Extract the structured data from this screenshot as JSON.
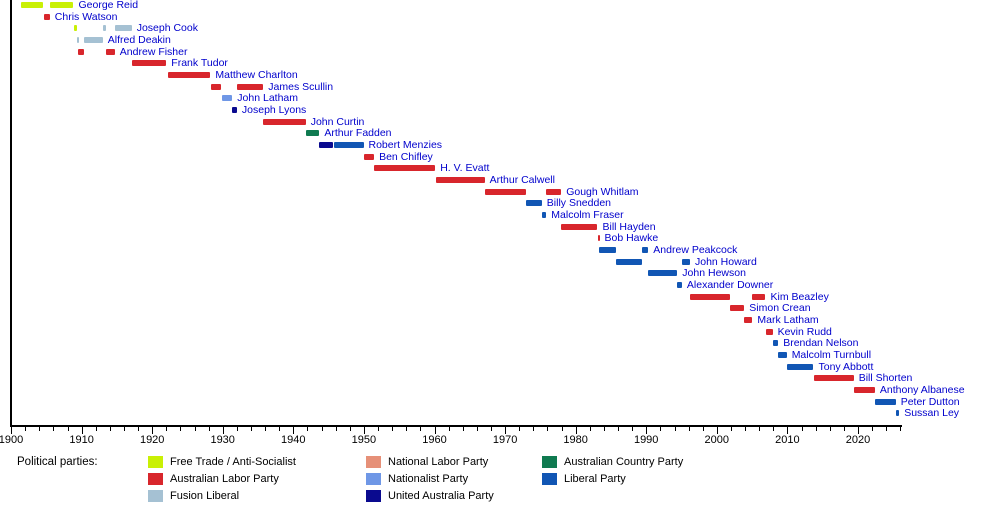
{
  "chart_data": {
    "type": "timeline-gantt",
    "x_axis": {
      "start": 1900,
      "end": 2026.3,
      "tick_label_years": [
        1900,
        1910,
        1920,
        1930,
        1940,
        1950,
        1960,
        1970,
        1980,
        1990,
        2000,
        2010,
        2020
      ],
      "minor_tick_step": 2,
      "grid": false
    },
    "parties": {
      "ft": {
        "label": "Free Trade / Anti-Socialist",
        "color": "#c9f005"
      },
      "alp": {
        "label": "Australian Labor Party",
        "color": "#d8262c"
      },
      "fus": {
        "label": "Fusion Liberal",
        "color": "#a5c1d3"
      },
      "nlp": {
        "label": "National Labor Party",
        "color": "#e69078"
      },
      "nat": {
        "label": "Nationalist Party",
        "color": "#6f97e6"
      },
      "uap": {
        "label": "United Australia Party",
        "color": "#0a0a8f"
      },
      "cp": {
        "label": "Australian Country Party",
        "color": "#0f7a50"
      },
      "lib": {
        "label": "Liberal Party",
        "color": "#1156b4"
      }
    },
    "label_color": "#0000cc",
    "people": [
      {
        "name": "George Reid",
        "segments": [
          {
            "start": 1901.35,
            "end": 1904.6,
            "party": "ft"
          },
          {
            "start": 1905.5,
            "end": 1908.85,
            "party": "ft"
          }
        ]
      },
      {
        "name": "Chris Watson",
        "segments": [
          {
            "start": 1904.6,
            "end": 1905.5,
            "party": "alp"
          }
        ]
      },
      {
        "name": "Joseph Cook",
        "segments": [
          {
            "start": 1908.85,
            "end": 1909.4,
            "party": "ft"
          },
          {
            "start": 1913.0,
            "end": 1913.45,
            "party": "fus"
          },
          {
            "start": 1914.7,
            "end": 1917.1,
            "party": "fus"
          }
        ]
      },
      {
        "name": "Alfred Deakin",
        "segments": [
          {
            "start": 1909.4,
            "end": 1909.6,
            "party": "fus"
          },
          {
            "start": 1910.3,
            "end": 1913.0,
            "party": "fus"
          }
        ]
      },
      {
        "name": "Andrew Fisher",
        "segments": [
          {
            "start": 1909.45,
            "end": 1910.3,
            "party": "alp"
          },
          {
            "start": 1913.45,
            "end": 1914.7,
            "party": "alp"
          }
        ]
      },
      {
        "name": "Frank Tudor",
        "segments": [
          {
            "start": 1917.1,
            "end": 1922.0,
            "party": "alp"
          }
        ]
      },
      {
        "name": "Matthew Charlton",
        "segments": [
          {
            "start": 1922.2,
            "end": 1928.25,
            "party": "alp"
          }
        ]
      },
      {
        "name": "James Scullin",
        "segments": [
          {
            "start": 1928.3,
            "end": 1929.8,
            "party": "alp"
          },
          {
            "start": 1932.05,
            "end": 1935.75,
            "party": "alp"
          }
        ]
      },
      {
        "name": "John Latham",
        "segments": [
          {
            "start": 1929.85,
            "end": 1931.35,
            "party": "nat"
          }
        ]
      },
      {
        "name": "Joseph Lyons",
        "segments": [
          {
            "start": 1931.35,
            "end": 1932.0,
            "party": "uap"
          }
        ]
      },
      {
        "name": "John Curtin",
        "segments": [
          {
            "start": 1935.75,
            "end": 1941.75,
            "party": "alp"
          }
        ]
      },
      {
        "name": "Arthur Fadden",
        "segments": [
          {
            "start": 1941.75,
            "end": 1943.7,
            "party": "cp"
          }
        ]
      },
      {
        "name": "Robert Menzies",
        "segments": [
          {
            "start": 1943.7,
            "end": 1945.7,
            "party": "uap"
          },
          {
            "start": 1945.7,
            "end": 1949.95,
            "party": "lib"
          }
        ]
      },
      {
        "name": "Ben Chifley",
        "segments": [
          {
            "start": 1949.95,
            "end": 1951.45,
            "party": "alp"
          }
        ]
      },
      {
        "name": "H. V. Evatt",
        "segments": [
          {
            "start": 1951.45,
            "end": 1960.1,
            "party": "alp"
          }
        ]
      },
      {
        "name": "Arthur Calwell",
        "segments": [
          {
            "start": 1960.2,
            "end": 1967.1,
            "party": "alp"
          }
        ]
      },
      {
        "name": "Gough Whitlam",
        "segments": [
          {
            "start": 1967.1,
            "end": 1972.95,
            "party": "alp"
          },
          {
            "start": 1975.85,
            "end": 1977.95,
            "party": "alp"
          }
        ]
      },
      {
        "name": "Billy Snedden",
        "segments": [
          {
            "start": 1972.95,
            "end": 1975.2,
            "party": "lib"
          }
        ]
      },
      {
        "name": "Malcolm Fraser",
        "segments": [
          {
            "start": 1975.2,
            "end": 1975.85,
            "party": "lib"
          }
        ]
      },
      {
        "name": "Bill Hayden",
        "segments": [
          {
            "start": 1977.95,
            "end": 1983.1,
            "party": "alp"
          }
        ]
      },
      {
        "name": "Bob Hawke",
        "segments": [
          {
            "start": 1983.1,
            "end": 1983.25,
            "party": "alp"
          }
        ]
      },
      {
        "name": "Andrew Peakcock",
        "segments": [
          {
            "start": 1983.25,
            "end": 1985.7,
            "party": "lib"
          },
          {
            "start": 1989.35,
            "end": 1990.3,
            "party": "lib"
          }
        ]
      },
      {
        "name": "John Howard",
        "segments": [
          {
            "start": 1985.7,
            "end": 1989.35,
            "party": "lib"
          },
          {
            "start": 1995.05,
            "end": 1996.2,
            "party": "lib"
          }
        ]
      },
      {
        "name": "John Hewson",
        "segments": [
          {
            "start": 1990.3,
            "end": 1994.4,
            "party": "lib"
          }
        ]
      },
      {
        "name": "Alexander Downer",
        "segments": [
          {
            "start": 1994.4,
            "end": 1995.05,
            "party": "lib"
          }
        ]
      },
      {
        "name": "Kim Beazley",
        "segments": [
          {
            "start": 1996.2,
            "end": 2001.9,
            "party": "alp"
          },
          {
            "start": 2005.05,
            "end": 2006.9,
            "party": "alp"
          }
        ]
      },
      {
        "name": "Simon Crean",
        "segments": [
          {
            "start": 2001.9,
            "end": 2003.9,
            "party": "alp"
          }
        ]
      },
      {
        "name": "Mark Latham",
        "segments": [
          {
            "start": 2003.9,
            "end": 2005.05,
            "party": "alp"
          }
        ]
      },
      {
        "name": "Kevin Rudd",
        "segments": [
          {
            "start": 2006.9,
            "end": 2007.9,
            "party": "alp"
          }
        ]
      },
      {
        "name": "Brendan Nelson",
        "segments": [
          {
            "start": 2007.9,
            "end": 2008.7,
            "party": "lib"
          }
        ]
      },
      {
        "name": "Malcolm Turnbull",
        "segments": [
          {
            "start": 2008.7,
            "end": 2009.9,
            "party": "lib"
          }
        ]
      },
      {
        "name": "Tony Abbott",
        "segments": [
          {
            "start": 2009.9,
            "end": 2013.7,
            "party": "lib"
          }
        ]
      },
      {
        "name": "Bill Shorten",
        "segments": [
          {
            "start": 2013.75,
            "end": 2019.4,
            "party": "alp"
          }
        ]
      },
      {
        "name": "Anthony Albanese",
        "segments": [
          {
            "start": 2019.4,
            "end": 2022.4,
            "party": "alp"
          }
        ]
      },
      {
        "name": "Peter Dutton",
        "segments": [
          {
            "start": 2022.4,
            "end": 2025.35,
            "party": "lib"
          }
        ]
      },
      {
        "name": "Sussan Ley",
        "segments": [
          {
            "start": 2025.35,
            "end": 2025.85,
            "party": "lib"
          }
        ]
      }
    ]
  },
  "legend": {
    "title": "Political parties:",
    "columns": [
      [
        "ft",
        "alp",
        "fus"
      ],
      [
        "nlp",
        "nat",
        "uap"
      ],
      [
        "cp",
        "lib"
      ]
    ]
  }
}
